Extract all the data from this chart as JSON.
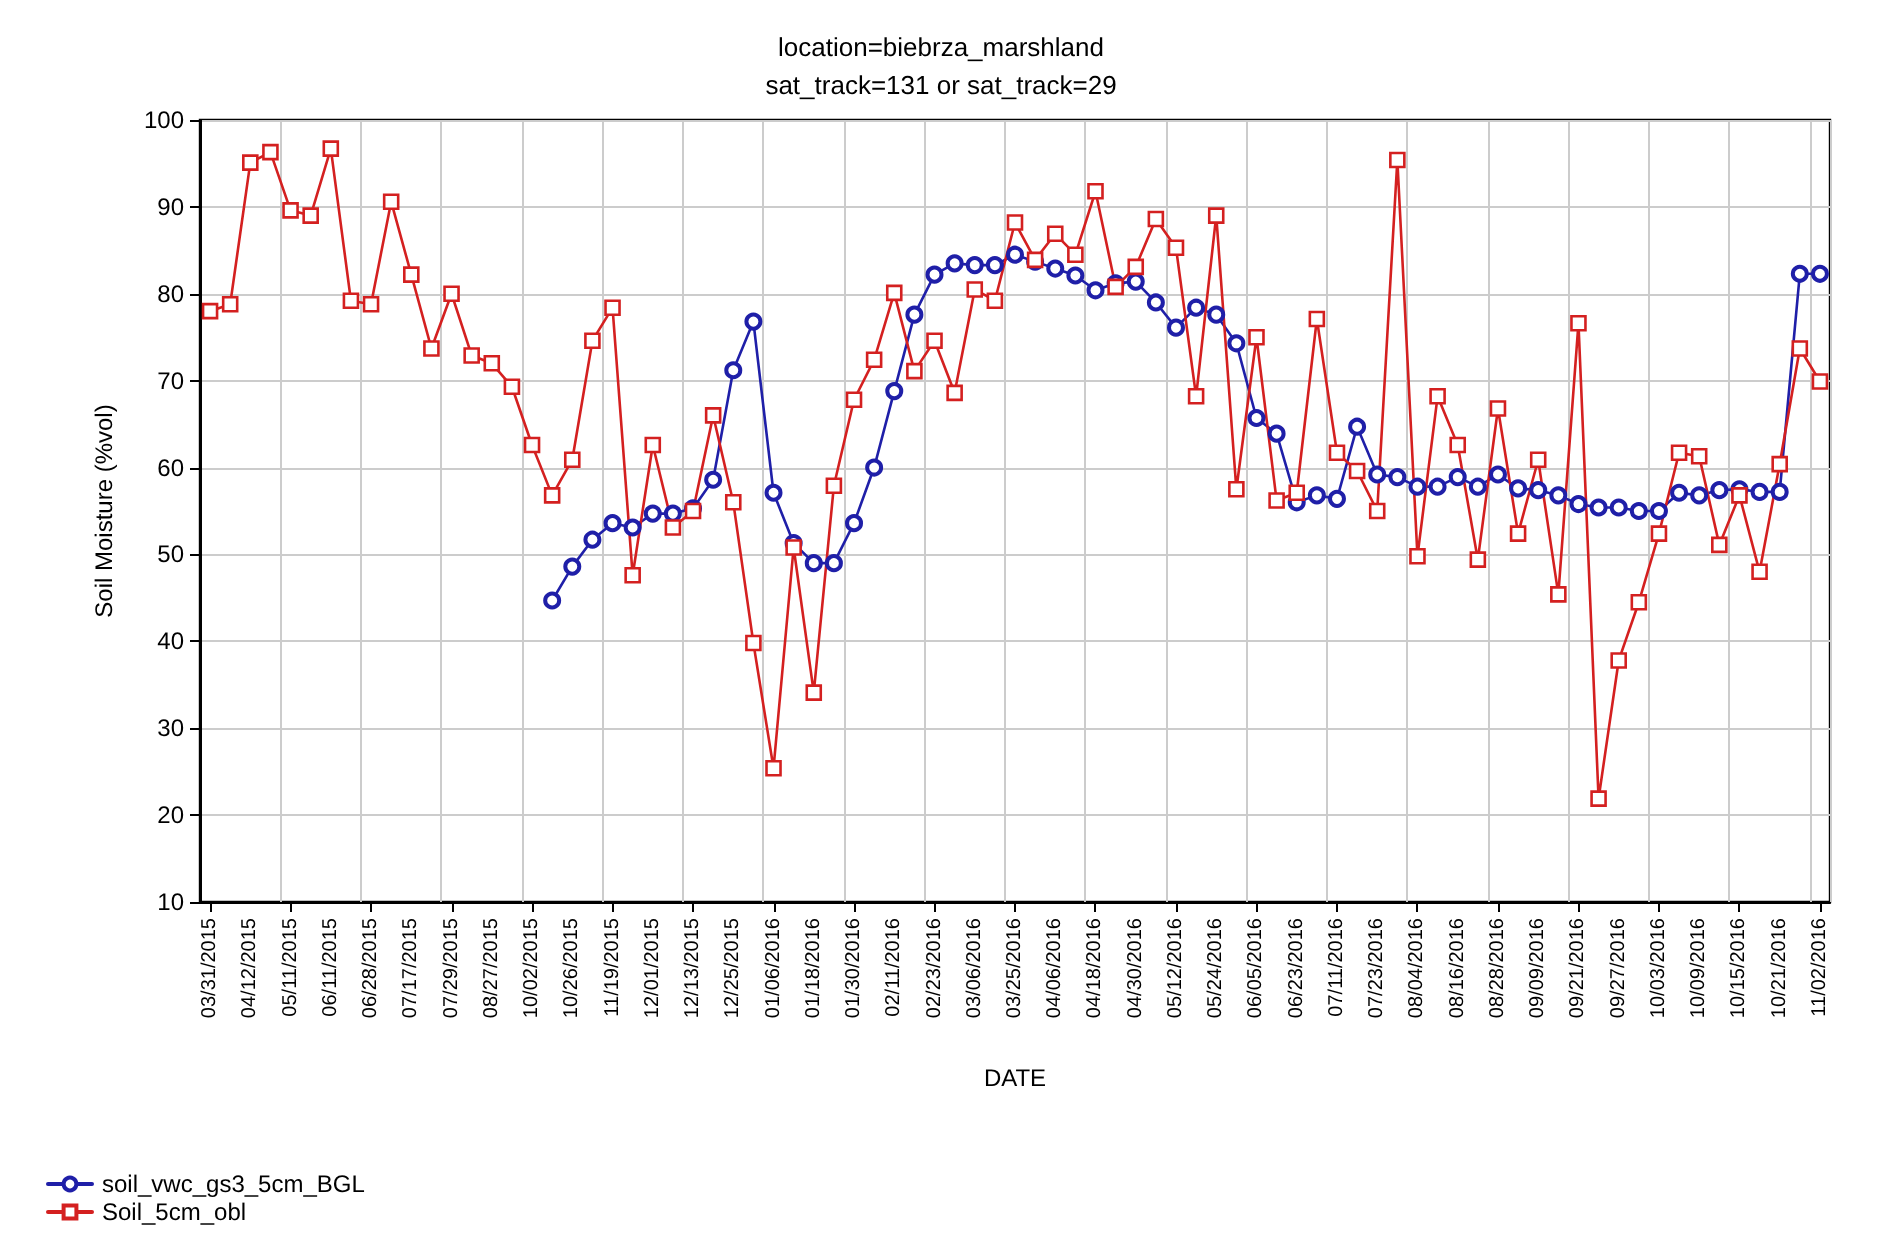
{
  "chart_data": {
    "type": "line",
    "title": "location=biebrza_marshland",
    "subtitle": "sat_track=131 or sat_track=29",
    "xlabel": "DATE",
    "ylabel": "Soil Moisture (%vol)",
    "categories": [
      "03/31/2015",
      null,
      "04/12/2015",
      null,
      "05/11/2015",
      null,
      "06/11/2015",
      null,
      "06/28/2015",
      null,
      "07/17/2015",
      null,
      "07/29/2015",
      null,
      "08/27/2015",
      null,
      "10/02/2015",
      null,
      "10/26/2015",
      null,
      "11/19/2015",
      null,
      "12/01/2015",
      null,
      "12/13/2015",
      null,
      "12/25/2015",
      null,
      "01/06/2016",
      null,
      "01/18/2016",
      null,
      "01/30/2016",
      null,
      "02/11/2016",
      null,
      "02/23/2016",
      null,
      "03/06/2016",
      null,
      "03/25/2016",
      null,
      "04/06/2016",
      null,
      "04/18/2016",
      null,
      "04/30/2016",
      null,
      "05/12/2016",
      null,
      "05/24/2016",
      null,
      "06/05/2016",
      null,
      "06/23/2016",
      null,
      "07/11/2016",
      null,
      "07/23/2016",
      null,
      "08/04/2016",
      null,
      "08/16/2016",
      null,
      "08/28/2016",
      null,
      "09/09/2016",
      null,
      "09/21/2016",
      null,
      "09/27/2016",
      null,
      "10/03/2016",
      null,
      "10/09/2016",
      null,
      "10/15/2016",
      null,
      "10/21/2016",
      null,
      "11/02/2016"
    ],
    "series": [
      {
        "name": "soil_vwc_gs3_5cm_BGL",
        "color": "#1f1fa8",
        "marker": "circle",
        "values": [
          null,
          null,
          null,
          null,
          null,
          null,
          null,
          null,
          null,
          null,
          null,
          null,
          null,
          null,
          null,
          null,
          null,
          44.7,
          48.6,
          51.7,
          53.6,
          53.1,
          54.7,
          54.7,
          55.3,
          58.6,
          71.2,
          76.8,
          57.1,
          51.3,
          49.0,
          49.0,
          53.6,
          60.0,
          68.8,
          77.6,
          82.2,
          83.5,
          83.3,
          83.3,
          84.5,
          83.7,
          82.9,
          82.1,
          80.4,
          81.2,
          81.4,
          79.0,
          76.1,
          78.4,
          77.6,
          74.3,
          65.7,
          63.9,
          56.0,
          56.8,
          56.4,
          64.7,
          59.2,
          58.9,
          57.8,
          57.8,
          58.9,
          57.8,
          59.2,
          57.6,
          57.4,
          56.8,
          55.8,
          55.4,
          55.4,
          55.0,
          55.0,
          57.1,
          56.8,
          57.4,
          57.5,
          57.2,
          57.2,
          82.3,
          82.3
        ]
      },
      {
        "name": "Soil_5cm_obl",
        "color": "#d42020",
        "marker": "square",
        "values": [
          78.0,
          78.8,
          95.1,
          96.3,
          89.6,
          89.0,
          96.7,
          79.2,
          78.8,
          90.6,
          82.2,
          73.7,
          80.0,
          72.9,
          72.0,
          69.3,
          62.6,
          56.8,
          60.9,
          74.6,
          78.4,
          47.6,
          62.6,
          53.1,
          55.0,
          66.0,
          56.0,
          39.8,
          25.4,
          50.8,
          34.1,
          57.9,
          67.8,
          72.4,
          80.1,
          71.1,
          74.6,
          68.6,
          80.5,
          79.2,
          88.2,
          83.9,
          86.9,
          84.5,
          91.8,
          80.8,
          83.1,
          88.6,
          85.3,
          68.2,
          89.0,
          57.5,
          75.0,
          56.2,
          57.1,
          77.1,
          61.7,
          59.6,
          55.0,
          95.4,
          49.8,
          68.2,
          62.6,
          49.4,
          66.8,
          52.4,
          60.9,
          45.4,
          76.6,
          21.9,
          37.8,
          44.5,
          52.4,
          61.7,
          61.3,
          51.1,
          56.8,
          48.0,
          60.4,
          73.7,
          69.9
        ]
      }
    ],
    "ylim": [
      10,
      100
    ],
    "yticks": [
      10,
      20,
      30,
      40,
      50,
      60,
      70,
      80,
      90,
      100
    ],
    "grid": true,
    "legend": "bottom left",
    "line_style": "solid"
  }
}
